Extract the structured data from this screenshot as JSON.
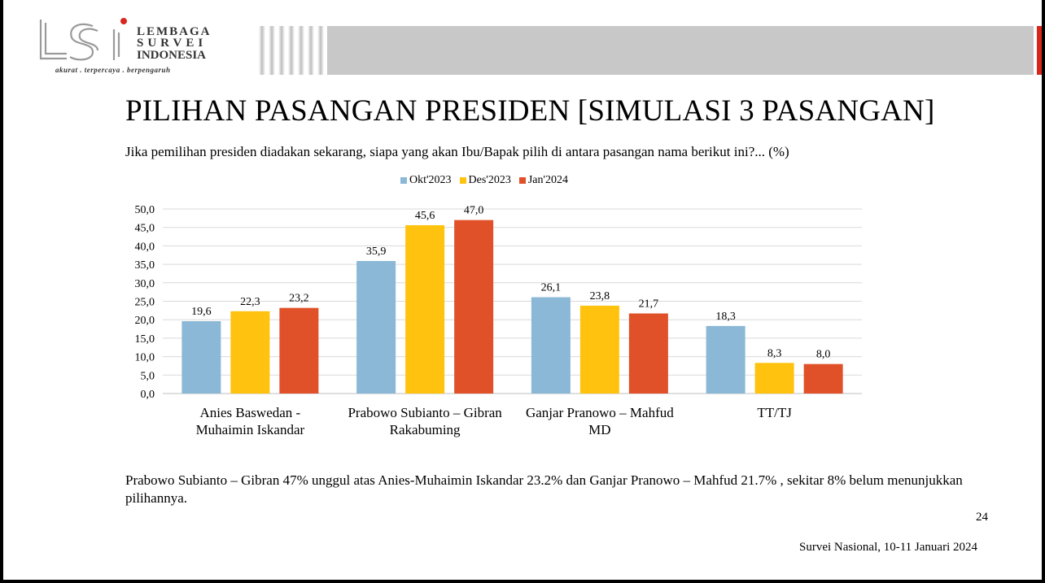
{
  "header": {
    "logo_mark": "LSI",
    "logo_words": [
      "LEMBAGA",
      "SURVEI",
      "INDONESIA"
    ],
    "tagline": "akurat . terpercaya . berpengaruh"
  },
  "title": "PILIHAN PASANGAN PRESIDEN [SIMULASI 3 PASANGAN]",
  "subtitle": "Jika pemilihan presiden diadakan sekarang, siapa yang akan Ibu/Bapak pilih di antara pasangan nama berikut ini?... (%)",
  "colors": {
    "okt2023": "#8ab8d6",
    "des2023": "#ffc20e",
    "jan2024": "#e0512a",
    "banner_gray": "#c8c8c8",
    "accent_red": "#d9261c"
  },
  "chart_data": {
    "type": "bar",
    "title": "",
    "xlabel": "",
    "ylabel": "",
    "ylim": [
      0,
      50
    ],
    "yticks": [
      "0,0",
      "5,0",
      "10,0",
      "15,0",
      "20,0",
      "25,0",
      "30,0",
      "35,0",
      "40,0",
      "45,0",
      "50,0"
    ],
    "legend_position": "top",
    "categories": [
      [
        "Anies Baswedan -",
        "Muhaimin Iskandar"
      ],
      [
        "Prabowo Subianto – Gibran",
        "Rakabuming"
      ],
      [
        "Ganjar Pranowo – Mahfud",
        "MD"
      ],
      [
        "TT/TJ"
      ]
    ],
    "series": [
      {
        "name": "Okt'2023",
        "values": [
          19.6,
          35.9,
          26.1,
          18.3
        ],
        "labels": [
          "19,6",
          "35,9",
          "26,1",
          "18,3"
        ]
      },
      {
        "name": "Des'2023",
        "values": [
          22.3,
          45.6,
          23.8,
          8.3
        ],
        "labels": [
          "22,3",
          "45,6",
          "23,8",
          "8,3"
        ]
      },
      {
        "name": "Jan'2024",
        "values": [
          23.2,
          47.0,
          21.7,
          8.0
        ],
        "labels": [
          "23,2",
          "47,0",
          "21,7",
          "8,0"
        ]
      }
    ]
  },
  "summary": "Prabowo Subianto – Gibran 47% unggul atas Anies-Muhaimin Iskandar 23.2% dan Ganjar Pranowo – Mahfud 21.7% , sekitar 8% belum menunjukkan pilihannya.",
  "page_number": "24",
  "footer": "Survei Nasional, 10-11 Januari 2024"
}
